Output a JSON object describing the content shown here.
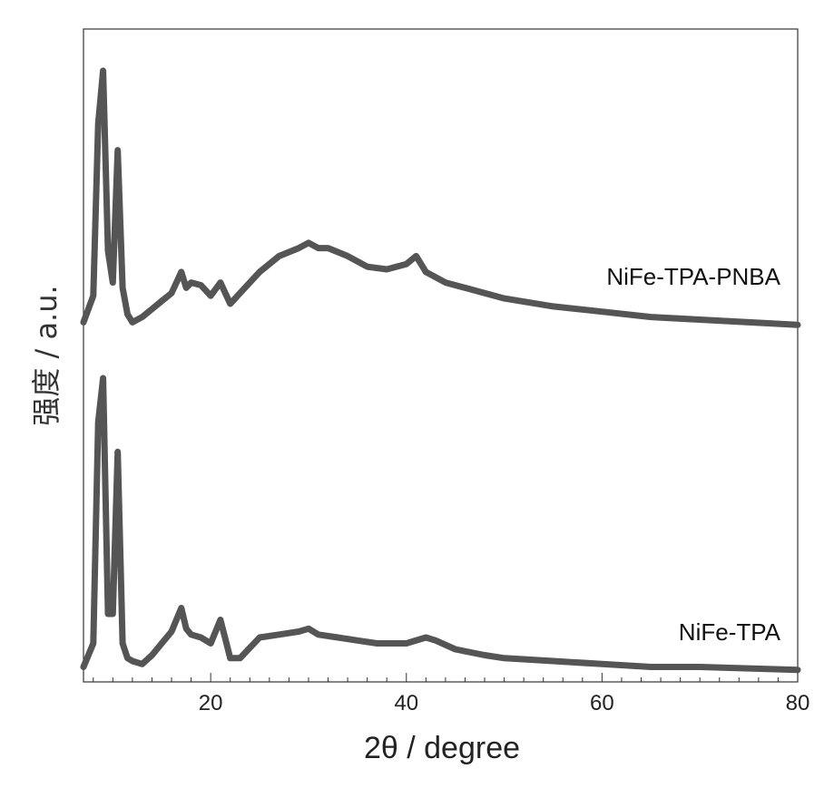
{
  "chart_data": {
    "type": "line",
    "xlabel": "2θ / degree",
    "ylabel": "强度 / a.u.",
    "xlim": [
      7,
      80
    ],
    "x_ticks": [
      20,
      40,
      60,
      80
    ],
    "x_tick_labels": [
      "20",
      "40",
      "60",
      "80"
    ],
    "y_ticks_shown": false,
    "grid": false,
    "line_color": "#555555",
    "series": [
      {
        "name": "NiFe-TPA-PNBA",
        "x": [
          7,
          8,
          8.5,
          9,
          9.5,
          10,
          10.5,
          11,
          11.5,
          12,
          13,
          14,
          15,
          16,
          17,
          17.5,
          18,
          19,
          20,
          21,
          22,
          23,
          25,
          27,
          29,
          30,
          31,
          32,
          34,
          36,
          38,
          40,
          41,
          42,
          44,
          46,
          48,
          50,
          55,
          60,
          65,
          70,
          75,
          80
        ],
        "y": [
          0.05,
          0.15,
          0.8,
          1.0,
          0.32,
          0.2,
          0.7,
          0.18,
          0.08,
          0.05,
          0.07,
          0.1,
          0.13,
          0.16,
          0.24,
          0.18,
          0.2,
          0.19,
          0.15,
          0.2,
          0.12,
          0.16,
          0.24,
          0.3,
          0.33,
          0.35,
          0.33,
          0.33,
          0.3,
          0.26,
          0.25,
          0.27,
          0.3,
          0.24,
          0.2,
          0.18,
          0.16,
          0.14,
          0.11,
          0.09,
          0.07,
          0.06,
          0.05,
          0.04
        ]
      },
      {
        "name": "NiFe-TPA",
        "x": [
          7,
          8,
          8.5,
          9,
          9.5,
          10,
          10.5,
          11,
          11.5,
          12,
          13,
          14,
          15,
          16,
          17,
          17.5,
          18,
          19,
          20,
          21,
          22,
          23,
          25,
          27,
          29,
          30,
          31,
          33,
          35,
          37,
          40,
          42,
          43,
          45,
          48,
          50,
          55,
          60,
          65,
          70,
          75,
          80
        ],
        "y": [
          0.02,
          0.1,
          0.85,
          1.0,
          0.2,
          0.2,
          0.75,
          0.1,
          0.05,
          0.04,
          0.03,
          0.06,
          0.1,
          0.14,
          0.22,
          0.15,
          0.13,
          0.12,
          0.1,
          0.18,
          0.05,
          0.05,
          0.12,
          0.13,
          0.14,
          0.15,
          0.13,
          0.12,
          0.11,
          0.1,
          0.1,
          0.12,
          0.11,
          0.08,
          0.06,
          0.05,
          0.04,
          0.03,
          0.02,
          0.02,
          0.015,
          0.01
        ]
      }
    ]
  }
}
